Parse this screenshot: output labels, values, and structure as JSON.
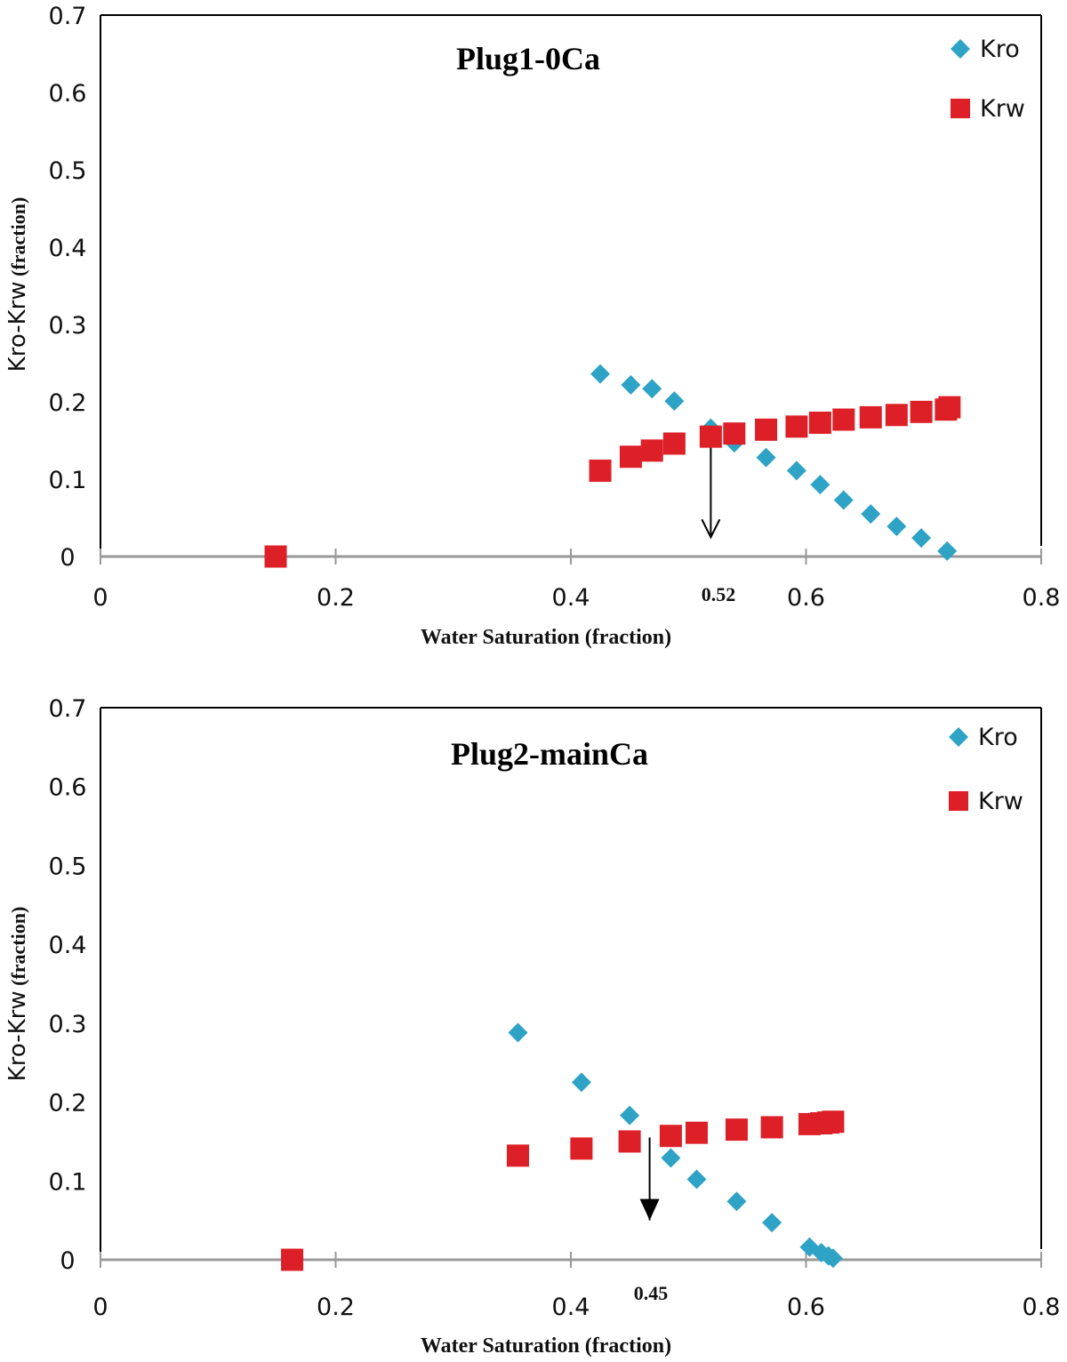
{
  "colors": {
    "kro": "#2fa3c6",
    "krw": "#dd2027",
    "axis": "#000000",
    "tick_line": "#999999"
  },
  "chart_data": [
    {
      "type": "scatter",
      "title": "Plug1-0Ca",
      "xlabel": "Water Saturation (fraction)",
      "ylabel": "Kro-Krw",
      "ylabel_unit": "(fraction)",
      "xlim": [
        0,
        0.8
      ],
      "ylim": [
        0,
        0.7
      ],
      "xticks": [
        0,
        0.2,
        0.4,
        0.6,
        0.8
      ],
      "xtick_labels": [
        "0",
        "0.2",
        "0.4",
        "0.6",
        "0.8"
      ],
      "yticks": [
        0,
        0.1,
        0.2,
        0.3,
        0.4,
        0.5,
        0.6,
        0.7
      ],
      "ytick_labels": [
        "0",
        "0.1",
        "0.2",
        "0.3",
        "0.4",
        "0.5",
        "0.6",
        "0.7"
      ],
      "legend_position": "top-right",
      "series": [
        {
          "name": "Kro",
          "marker": "diamond",
          "x": [
            0.425,
            0.451,
            0.469,
            0.488,
            0.519,
            0.539,
            0.566,
            0.592,
            0.612,
            0.632,
            0.655,
            0.677,
            0.698,
            0.72
          ],
          "y": [
            0.236,
            0.222,
            0.217,
            0.201,
            0.166,
            0.147,
            0.128,
            0.111,
            0.093,
            0.073,
            0.055,
            0.039,
            0.024,
            0.007
          ]
        },
        {
          "name": "Krw",
          "marker": "square",
          "x": [
            0.149,
            0.425,
            0.451,
            0.469,
            0.488,
            0.519,
            0.539,
            0.566,
            0.592,
            0.612,
            0.632,
            0.655,
            0.677,
            0.698,
            0.719,
            0.722
          ],
          "y": [
            0.0,
            0.111,
            0.129,
            0.137,
            0.146,
            0.155,
            0.159,
            0.164,
            0.168,
            0.173,
            0.177,
            0.18,
            0.183,
            0.187,
            0.19,
            0.193
          ]
        }
      ],
      "annotation": {
        "label": "0.52",
        "x": 0.519,
        "y_from": 0.145,
        "y_to": 0.025
      }
    },
    {
      "type": "scatter",
      "title": "Plug2-mainCa",
      "xlabel": "Water Saturation (fraction)",
      "ylabel": "Kro-Krw",
      "ylabel_unit": "(fraction)",
      "xlim": [
        0,
        0.8
      ],
      "ylim": [
        0,
        0.7
      ],
      "xticks": [
        0,
        0.2,
        0.4,
        0.6,
        0.8
      ],
      "xtick_labels": [
        "0",
        "0.2",
        "0.4",
        "0.6",
        "0.8"
      ],
      "yticks": [
        0,
        0.1,
        0.2,
        0.3,
        0.4,
        0.5,
        0.6,
        0.7
      ],
      "ytick_labels": [
        "0",
        "0.1",
        "0.2",
        "0.3",
        "0.4",
        "0.5",
        "0.6",
        "0.7"
      ],
      "legend_position": "top-right",
      "series": [
        {
          "name": "Kro",
          "marker": "diamond",
          "x": [
            0.355,
            0.409,
            0.45,
            0.485,
            0.507,
            0.541,
            0.571,
            0.603,
            0.613,
            0.619,
            0.623
          ],
          "y": [
            0.288,
            0.225,
            0.183,
            0.129,
            0.102,
            0.074,
            0.047,
            0.016,
            0.009,
            0.005,
            0.002
          ]
        },
        {
          "name": "Krw",
          "marker": "square",
          "x": [
            0.163,
            0.355,
            0.409,
            0.45,
            0.485,
            0.507,
            0.541,
            0.571,
            0.603,
            0.613,
            0.619,
            0.623
          ],
          "y": [
            0.0,
            0.132,
            0.141,
            0.15,
            0.157,
            0.161,
            0.165,
            0.168,
            0.172,
            0.173,
            0.174,
            0.175
          ]
        }
      ],
      "annotation": {
        "label": "0.45",
        "x": 0.467,
        "y_from": 0.155,
        "y_to": 0.05
      }
    }
  ]
}
